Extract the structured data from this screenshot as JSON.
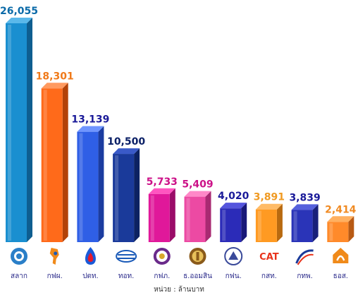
{
  "chart_data": {
    "type": "bar",
    "categories": [
      "สลาก",
      "กฟผ.",
      "ปตท.",
      "ทอท.",
      "กฟภ.",
      "ธ.ออมสิน",
      "กฟน.",
      "กสท.",
      "กทพ.",
      "ธอส."
    ],
    "values": [
      26055,
      18301,
      13139,
      10500,
      5733,
      5409,
      4020,
      3891,
      3839,
      2414
    ],
    "value_labels": [
      "26,055",
      "18,301",
      "13,139",
      "10,500",
      "5,733",
      "5,409",
      "4,020",
      "3,891",
      "3,839",
      "2,414"
    ],
    "ylim": [
      0,
      26055
    ],
    "grid": false,
    "unit_note": "หน่วย : ล้านบาท",
    "bar_colors": {
      "front": [
        "#1a8fd0",
        "#ff6a1a",
        "#2f5fe6",
        "#1a3a9a",
        "#e0189a",
        "#ec4aa3",
        "#2b2bb8",
        "#ff9a22",
        "#2a34b8",
        "#ff8a2a"
      ],
      "side": [
        "#0e5e90",
        "#b34208",
        "#1b3ca0",
        "#0c2262",
        "#9a0c68",
        "#a82a72",
        "#181878",
        "#b86a10",
        "#18207a",
        "#b85a14"
      ],
      "top": [
        "#5ab8ea",
        "#ff9a60",
        "#6f95ff",
        "#3a5ac8",
        "#ff55c0",
        "#ff88c8",
        "#5555dd",
        "#ffbb66",
        "#5560dd",
        "#ffb060"
      ]
    },
    "value_label_colors": [
      "#0a6aa8",
      "#f07a1a",
      "#1a1a99",
      "#0a1f66",
      "#cc1188",
      "#cc1188",
      "#1a1a99",
      "#f09a22",
      "#1a1a99",
      "#f08a22"
    ]
  },
  "logos": [
    "lottery-office-logo",
    "egat-logo",
    "ptt-logo",
    "aot-logo",
    "pea-logo",
    "gsb-logo",
    "mea-logo",
    "cat-logo",
    "expressway-logo",
    "ghb-logo"
  ],
  "logo_text": {
    "cat": "CAT"
  }
}
